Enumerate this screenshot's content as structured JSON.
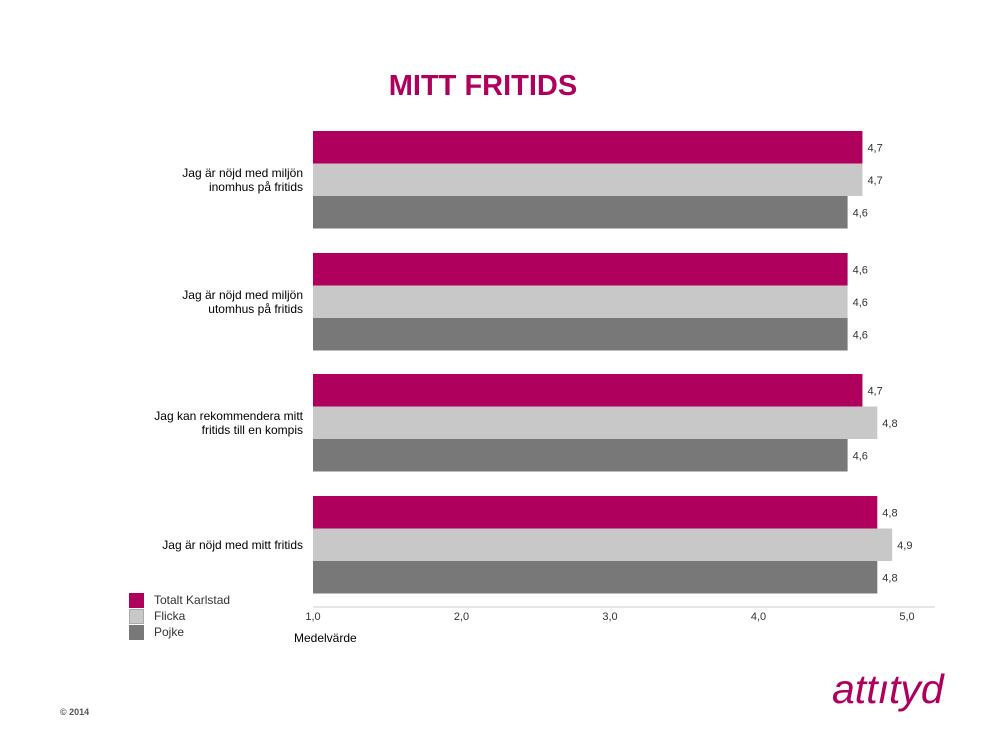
{
  "colors": {
    "accent": "#b0005e",
    "flicka": "#c8c8c8",
    "pojke": "#787878"
  },
  "logo_text": "attıtyd",
  "copyright": "© 2014",
  "chart_data": {
    "type": "bar",
    "orientation": "horizontal",
    "title": "MITT FRITIDS",
    "xlabel": "Medelvärde",
    "ylabel": "",
    "xlim": [
      1.0,
      5.0
    ],
    "x_ticks": [
      "1,0",
      "2,0",
      "3,0",
      "4,0",
      "5,0"
    ],
    "legend_position": "bottom-left",
    "grid": false,
    "categories": [
      [
        "Jag är nöjd med miljön",
        "inomhus på fritids"
      ],
      [
        "Jag är nöjd med miljön",
        "utomhus på fritids"
      ],
      [
        "Jag kan rekommendera mitt",
        "fritids till en kompis"
      ],
      [
        "Jag är nöjd med mitt fritids"
      ]
    ],
    "series": [
      {
        "name": "Totalt Karlstad",
        "color": "#b0005e",
        "values": [
          4.7,
          4.6,
          4.7,
          4.8
        ],
        "labels": [
          "4,7",
          "4,6",
          "4,7",
          "4,8"
        ]
      },
      {
        "name": "Flicka",
        "color": "#c8c8c8",
        "values": [
          4.7,
          4.6,
          4.8,
          4.9
        ],
        "labels": [
          "4,7",
          "4,6",
          "4,8",
          "4,9"
        ]
      },
      {
        "name": "Pojke",
        "color": "#787878",
        "values": [
          4.6,
          4.6,
          4.6,
          4.8
        ],
        "labels": [
          "4,6",
          "4,6",
          "4,6",
          "4,8"
        ]
      }
    ]
  }
}
